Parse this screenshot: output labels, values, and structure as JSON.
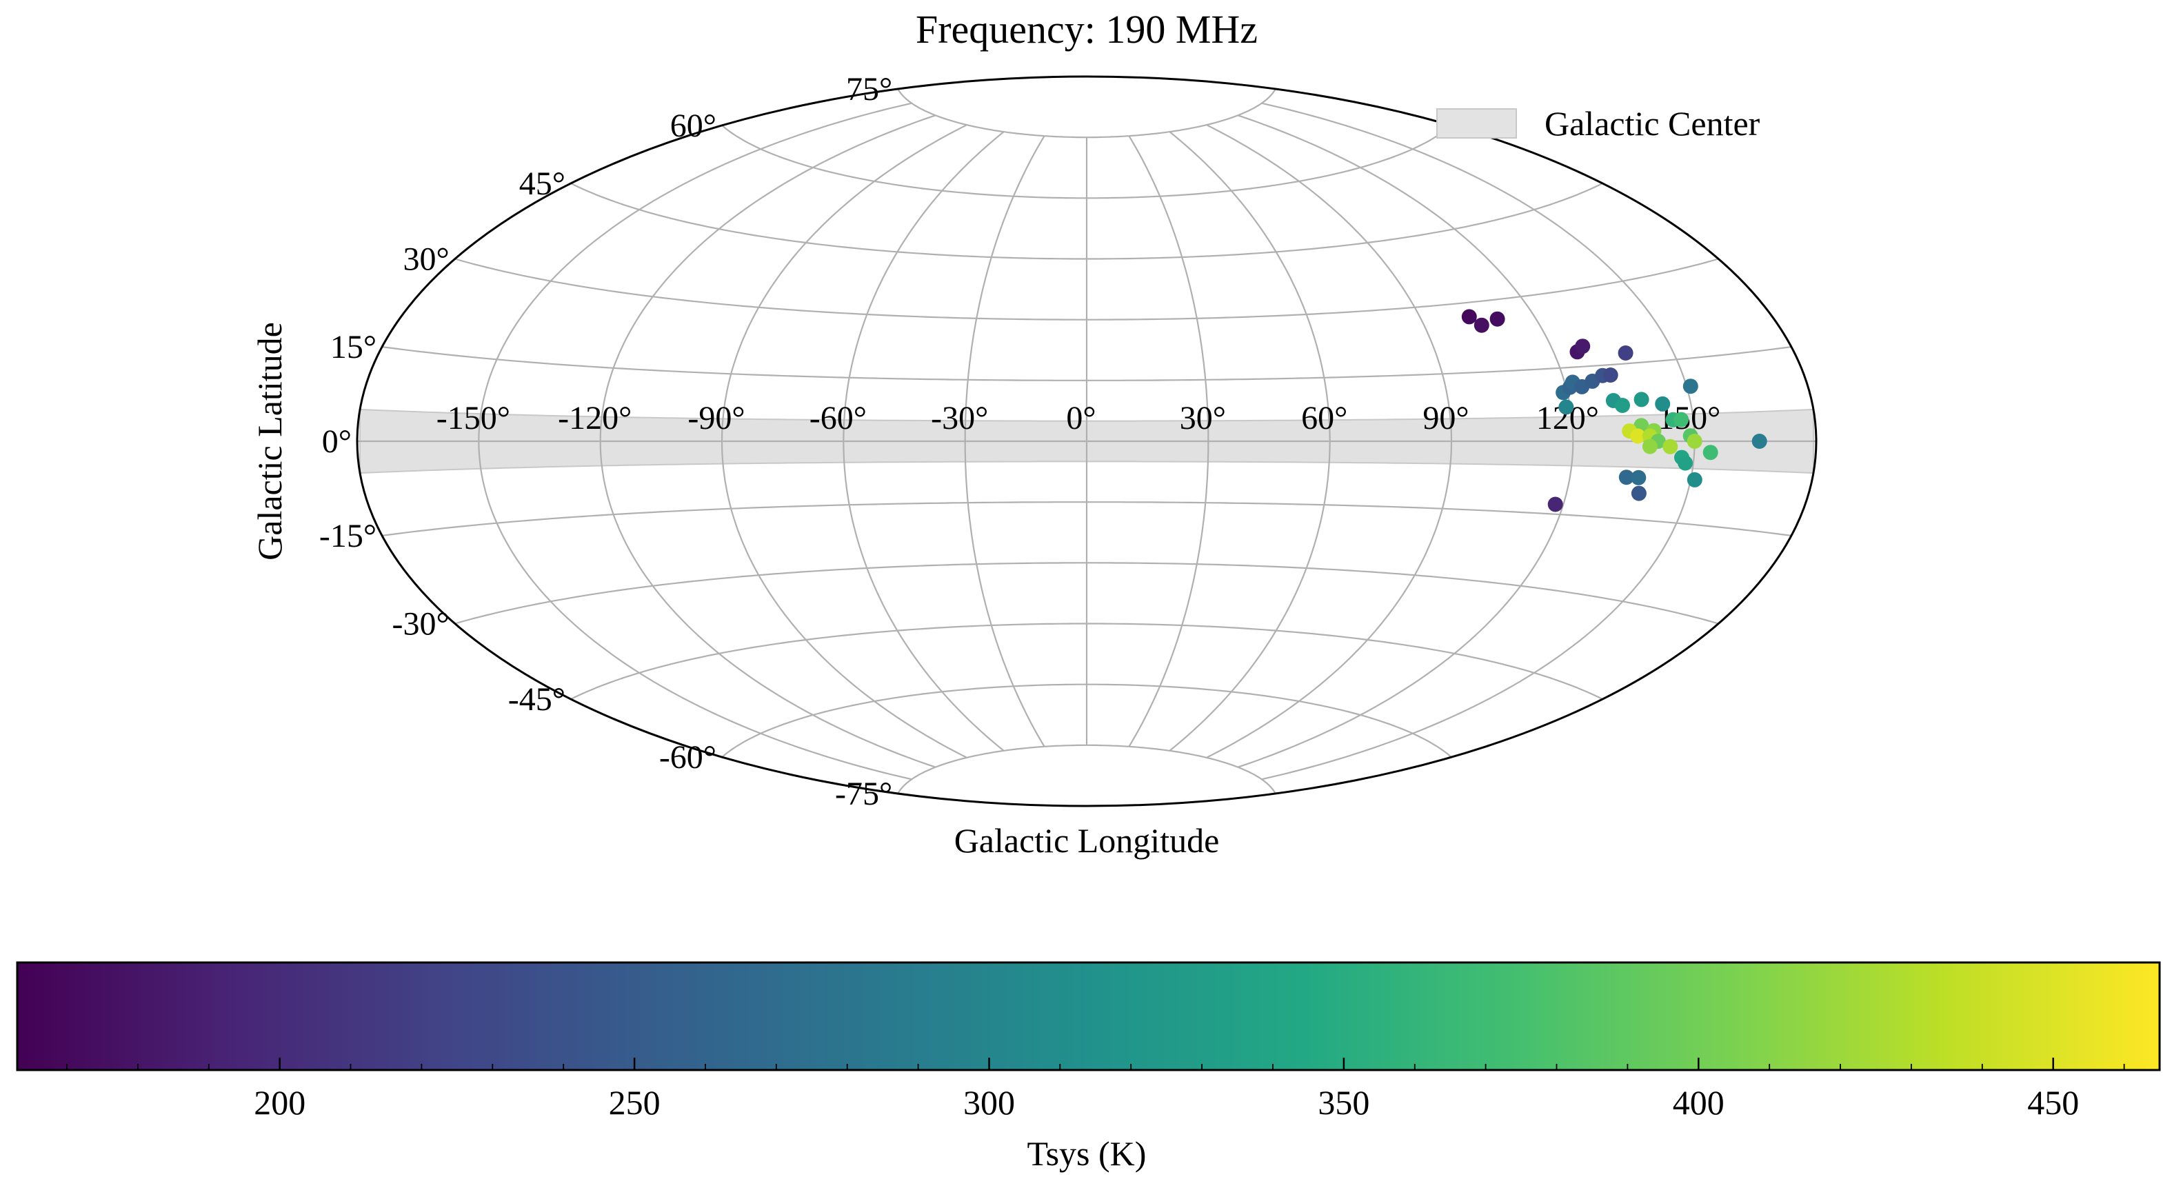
{
  "chart_data": {
    "type": "scatter",
    "projection": "aitoff",
    "title": "Frequency: 190 MHz",
    "xlabel": "Galactic Longitude",
    "ylabel": "Galactic Latitude",
    "x_ticks": [
      "-150°",
      "-120°",
      "-90°",
      "-60°",
      "-30°",
      "0°",
      "30°",
      "60°",
      "90°",
      "120°",
      "150°"
    ],
    "y_ticks": [
      "75°",
      "60°",
      "45°",
      "30°",
      "15°",
      "0°",
      "-15°",
      "-30°",
      "-45°",
      "-60°",
      "-75°"
    ],
    "xlim": [
      -180,
      180
    ],
    "ylim": [
      -90,
      90
    ],
    "grid": true,
    "legend": {
      "position": "top-right",
      "entries": [
        "Galactic Center"
      ]
    },
    "band": {
      "name": "Galactic Center",
      "b_range": [
        -5,
        5
      ],
      "color": "#d9d9d9"
    },
    "colorbar": {
      "label": "Tsys (K)",
      "range": [
        163,
        465
      ],
      "ticks": [
        "200",
        "250",
        "300",
        "350",
        "400",
        "450"
      ],
      "tick_values": [
        200,
        250,
        300,
        350,
        400,
        450
      ],
      "colormap": "viridis"
    },
    "points": [
      {
        "l": 103,
        "b": 27,
        "tsys": 170
      },
      {
        "l": 105,
        "b": 25,
        "tsys": 175
      },
      {
        "l": 110,
        "b": 26,
        "tsys": 172
      },
      {
        "l": 126,
        "b": 18,
        "tsys": 180
      },
      {
        "l": 128,
        "b": 19,
        "tsys": 185
      },
      {
        "l": 138,
        "b": 17,
        "tsys": 220
      },
      {
        "l": 119,
        "b": 10,
        "tsys": 270
      },
      {
        "l": 121,
        "b": 11,
        "tsys": 260
      },
      {
        "l": 122,
        "b": 12,
        "tsys": 265
      },
      {
        "l": 124,
        "b": 11,
        "tsys": 255
      },
      {
        "l": 127,
        "b": 12,
        "tsys": 250
      },
      {
        "l": 130,
        "b": 13,
        "tsys": 240
      },
      {
        "l": 132,
        "b": 13,
        "tsys": 230
      },
      {
        "l": 151,
        "b": 10,
        "tsys": 280
      },
      {
        "l": 119,
        "b": 7,
        "tsys": 300
      },
      {
        "l": 131,
        "b": 8,
        "tsys": 320
      },
      {
        "l": 133,
        "b": 7,
        "tsys": 330
      },
      {
        "l": 138,
        "b": 8,
        "tsys": 325
      },
      {
        "l": 143,
        "b": 7,
        "tsys": 310
      },
      {
        "l": 145,
        "b": 4,
        "tsys": 360
      },
      {
        "l": 147,
        "b": 4,
        "tsys": 370
      },
      {
        "l": 137,
        "b": 3,
        "tsys": 400
      },
      {
        "l": 140,
        "b": 2,
        "tsys": 410
      },
      {
        "l": 134,
        "b": 2,
        "tsys": 440
      },
      {
        "l": 136,
        "b": 1,
        "tsys": 450
      },
      {
        "l": 139,
        "b": 1,
        "tsys": 430
      },
      {
        "l": 141,
        "b": 0,
        "tsys": 395
      },
      {
        "l": 149,
        "b": 1,
        "tsys": 385
      },
      {
        "l": 150,
        "b": 0,
        "tsys": 420
      },
      {
        "l": 139,
        "b": -1,
        "tsys": 415
      },
      {
        "l": 144,
        "b": -1,
        "tsys": 425
      },
      {
        "l": 147,
        "b": -3,
        "tsys": 340
      },
      {
        "l": 148,
        "b": -4,
        "tsys": 335
      },
      {
        "l": 154,
        "b": -2,
        "tsys": 370
      },
      {
        "l": 166,
        "b": 0,
        "tsys": 290
      },
      {
        "l": 134,
        "b": -7,
        "tsys": 265
      },
      {
        "l": 137,
        "b": -7,
        "tsys": 270
      },
      {
        "l": 151,
        "b": -7,
        "tsys": 310
      },
      {
        "l": 138,
        "b": -10,
        "tsys": 245
      },
      {
        "l": 118,
        "b": -13,
        "tsys": 195
      }
    ]
  }
}
